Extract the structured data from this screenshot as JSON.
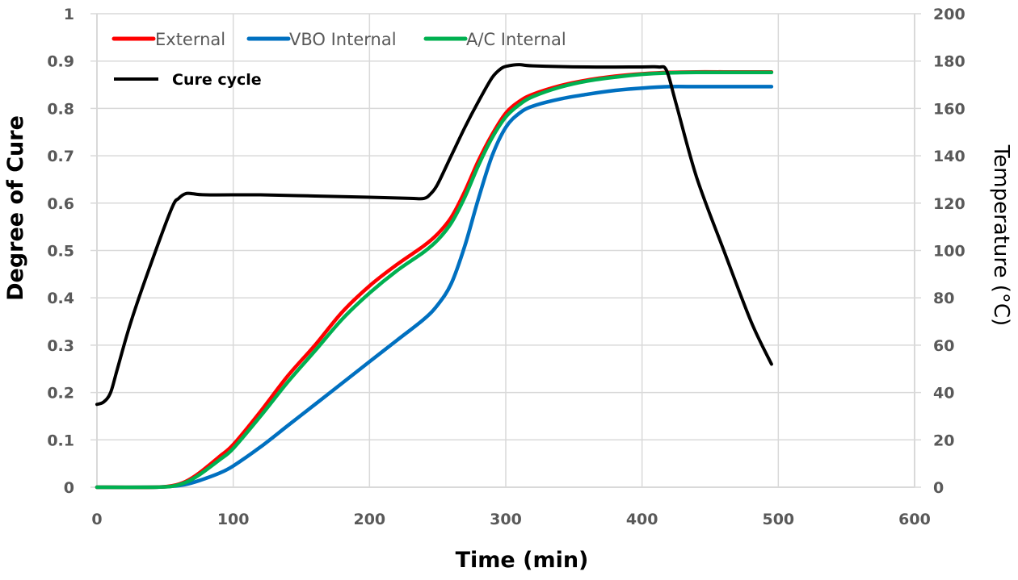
{
  "chart_data": {
    "type": "line",
    "title": "",
    "xlabel": "Time (min)",
    "ylabel": "Degree of Cure",
    "y2label": "Temperature (°C)",
    "xlim": [
      0,
      600
    ],
    "ylim": [
      0,
      1
    ],
    "y2lim": [
      0,
      200
    ],
    "grid": true,
    "legend_position": "top-left",
    "x_ticks": [
      "0",
      "100",
      "200",
      "300",
      "400",
      "500",
      "600"
    ],
    "y_ticks": [
      "0",
      "0.1",
      "0.2",
      "0.3",
      "0.4",
      "0.5",
      "0.6",
      "0.7",
      "0.8",
      "0.9",
      "1"
    ],
    "y2_ticks": [
      "0",
      "20",
      "40",
      "60",
      "80",
      "100",
      "120",
      "140",
      "160",
      "180",
      "200"
    ],
    "series": [
      {
        "name": "External",
        "axis": "left",
        "color": "#ff0000",
        "x": [
          0,
          40,
          55,
          65,
          75,
          90,
          100,
          120,
          140,
          160,
          180,
          200,
          220,
          240,
          250,
          260,
          270,
          280,
          290,
          300,
          310,
          320,
          340,
          360,
          380,
          400,
          420,
          440,
          460,
          495
        ],
        "y": [
          0,
          0,
          0.003,
          0.012,
          0.03,
          0.065,
          0.09,
          0.16,
          0.235,
          0.3,
          0.37,
          0.425,
          0.47,
          0.51,
          0.535,
          0.57,
          0.625,
          0.69,
          0.745,
          0.79,
          0.815,
          0.83,
          0.848,
          0.86,
          0.868,
          0.873,
          0.876,
          0.877,
          0.877,
          0.877
        ]
      },
      {
        "name": "VBO Internal",
        "axis": "left",
        "color": "#0070c0",
        "x": [
          0,
          40,
          55,
          65,
          75,
          90,
          100,
          120,
          140,
          160,
          180,
          200,
          220,
          240,
          250,
          260,
          270,
          280,
          290,
          300,
          310,
          320,
          340,
          360,
          380,
          400,
          420,
          440,
          460,
          495
        ],
        "y": [
          0,
          0,
          0.002,
          0.006,
          0.014,
          0.03,
          0.045,
          0.085,
          0.13,
          0.175,
          0.22,
          0.265,
          0.31,
          0.355,
          0.385,
          0.43,
          0.51,
          0.61,
          0.7,
          0.76,
          0.79,
          0.805,
          0.82,
          0.83,
          0.838,
          0.843,
          0.846,
          0.846,
          0.846,
          0.846
        ]
      },
      {
        "name": "A/C Internal",
        "axis": "left",
        "color": "#00b050",
        "x": [
          0,
          40,
          55,
          65,
          75,
          90,
          100,
          120,
          140,
          160,
          180,
          200,
          220,
          240,
          250,
          260,
          270,
          280,
          290,
          300,
          310,
          320,
          340,
          360,
          380,
          400,
          420,
          440,
          460,
          495
        ],
        "y": [
          0,
          0,
          0.002,
          0.01,
          0.026,
          0.058,
          0.082,
          0.15,
          0.222,
          0.288,
          0.355,
          0.41,
          0.457,
          0.497,
          0.522,
          0.558,
          0.613,
          0.68,
          0.738,
          0.782,
          0.808,
          0.825,
          0.845,
          0.858,
          0.866,
          0.872,
          0.875,
          0.876,
          0.876,
          0.876
        ]
      },
      {
        "name": "Cure cycle",
        "axis": "right",
        "color": "#000000",
        "x": [
          0,
          5,
          10,
          15,
          25,
          40,
          55,
          60,
          65,
          70,
          80,
          120,
          160,
          200,
          230,
          240,
          245,
          250,
          260,
          270,
          280,
          290,
          297,
          302,
          310,
          320,
          360,
          400,
          412,
          418,
          425,
          440,
          460,
          480,
          495
        ],
        "y": [
          35,
          36,
          40,
          50,
          70,
          95,
          118,
          122,
          124,
          124,
          123.5,
          123.5,
          123,
          122.5,
          122,
          122,
          124,
          128,
          140,
          152,
          163,
          173,
          177,
          178,
          178.5,
          178,
          177.5,
          177.5,
          177.5,
          176,
          162,
          131,
          100,
          70,
          52
        ]
      }
    ]
  }
}
